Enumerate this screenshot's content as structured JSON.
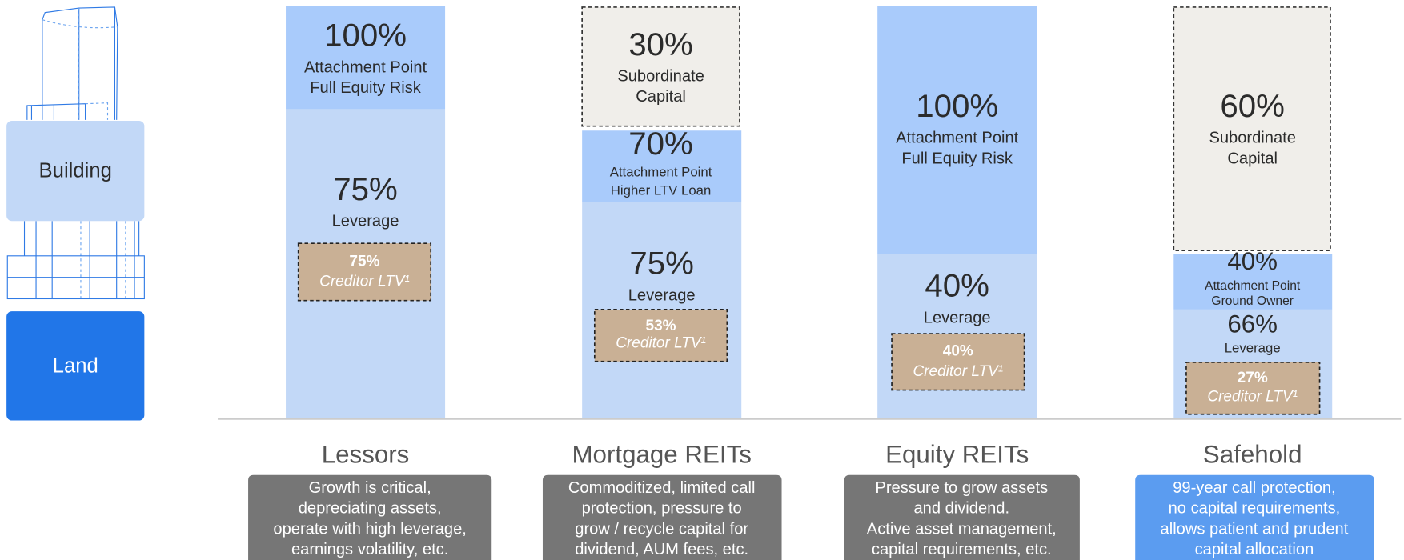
{
  "legend": {
    "building": "Building",
    "land": "Land"
  },
  "columns": [
    {
      "name": "Lessors",
      "description": [
        "Growth is critical,",
        "depreciating assets,",
        "operate with high leverage,",
        "earnings volatility, etc."
      ],
      "blocks": [
        {
          "value": "100%",
          "lines": [
            "Attachment Point",
            "Full Equity Risk"
          ]
        },
        {
          "value": "75%",
          "lines": [
            "Leverage"
          ]
        }
      ],
      "creditor": {
        "value": "75%",
        "label": "Creditor LTV¹"
      }
    },
    {
      "name": "Mortgage REITs",
      "description": [
        "Commoditized, limited call",
        "protection, pressure to",
        "grow / recycle capital for",
        "dividend, AUM fees, etc."
      ],
      "blocks": [
        {
          "value": "30%",
          "lines": [
            "Subordinate",
            "Capital"
          ]
        },
        {
          "value": "70%",
          "lines": [
            "Attachment Point",
            "Higher LTV Loan"
          ]
        },
        {
          "value": "75%",
          "lines": [
            "Leverage"
          ]
        }
      ],
      "creditor": {
        "value": "53%",
        "label": "Creditor LTV¹"
      }
    },
    {
      "name": "Equity REITs",
      "description": [
        "Pressure to grow assets",
        "and dividend.",
        "Active asset management,",
        "capital requirements, etc."
      ],
      "blocks": [
        {
          "value": "100%",
          "lines": [
            "Attachment Point",
            "Full Equity Risk"
          ]
        },
        {
          "value": "40%",
          "lines": [
            "Leverage"
          ]
        }
      ],
      "creditor": {
        "value": "40%",
        "label": "Creditor LTV¹"
      }
    },
    {
      "name": "Safehold",
      "description": [
        "99-year call protection,",
        "no capital requirements,",
        "allows patient and prudent",
        "capital allocation"
      ],
      "blocks": [
        {
          "value": "60%",
          "lines": [
            "Subordinate",
            "Capital"
          ]
        },
        {
          "value": "40%",
          "lines": [
            "Attachment Point",
            "Ground Owner"
          ]
        },
        {
          "value": "66%",
          "lines": [
            "Leverage"
          ]
        }
      ],
      "creditor": {
        "value": "27%",
        "label": "Creditor LTV¹"
      }
    }
  ]
}
